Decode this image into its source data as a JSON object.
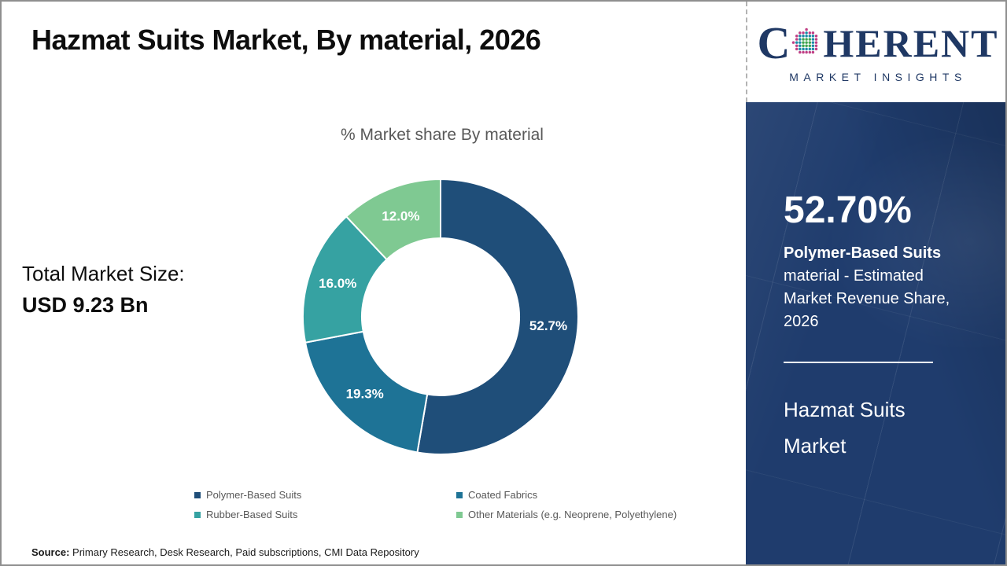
{
  "page": {
    "title": "Hazmat Suits Market, By material, 2026",
    "source_label": "Source:",
    "source_text": " Primary Research, Desk Research, Paid subscriptions, CMI Data Repository"
  },
  "logo": {
    "brand_first_letter": "C",
    "brand_rest": "HERENT",
    "tagline": "MARKET INSIGHTS",
    "brand_color": "#1f3864",
    "globe_colors": {
      "inner": "#3fa54f",
      "middle": "#1d8ca8",
      "outer": "#c03f85"
    }
  },
  "left_panel": {
    "total_market_size_label": "Total Market Size:",
    "total_market_size_value": "USD 9.23 Bn"
  },
  "chart_data": {
    "type": "pie",
    "donut": true,
    "title": "% Market share By material",
    "categories": [
      "Polymer-Based Suits",
      "Coated Fabrics",
      "Rubber-Based Suits",
      "Other Materials (e.g. Neoprene, Polyethylene)"
    ],
    "values": [
      52.7,
      19.3,
      16.0,
      12.0
    ],
    "labels": [
      "52.7%",
      "19.3%",
      "16.0%",
      "12.0%"
    ],
    "colors": [
      "#1F4E79",
      "#1E7396",
      "#36A2A2",
      "#7FC992"
    ],
    "label_color": "#ffffff",
    "start_angle_deg": 0,
    "direction": "clockwise",
    "outer_radius": 175,
    "inner_radius": 100,
    "legend_position": "bottom"
  },
  "sidebar": {
    "stat_value": "52.70%",
    "stat_label_bold": "Polymer-Based Suits",
    "stat_label_rest": " material - Estimated Market Revenue Share, 2026",
    "market_name": "Hazmat Suits Market",
    "bg_color": "#1f3c6d"
  }
}
